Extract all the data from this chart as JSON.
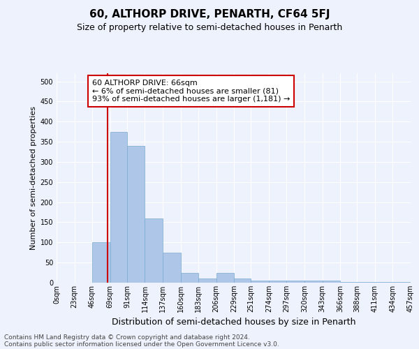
{
  "title": "60, ALTHORP DRIVE, PENARTH, CF64 5FJ",
  "subtitle": "Size of property relative to semi-detached houses in Penarth",
  "xlabel": "Distribution of semi-detached houses by size in Penarth",
  "ylabel": "Number of semi-detached properties",
  "property_size": 66,
  "annotation_line1": "60 ALTHORP DRIVE: 66sqm",
  "annotation_line2": "← 6% of semi-detached houses are smaller (81)",
  "annotation_line3": "93% of semi-detached houses are larger (1,181) →",
  "footer_line1": "Contains HM Land Registry data © Crown copyright and database right 2024.",
  "footer_line2": "Contains public sector information licensed under the Open Government Licence v3.0.",
  "bar_color": "#aec6e8",
  "bar_edge_color": "#7aaad0",
  "annotation_box_color": "#ffffff",
  "annotation_box_edge_color": "#cc0000",
  "vline_color": "#cc0000",
  "bin_labels": [
    "0sqm",
    "23sqm",
    "46sqm",
    "69sqm",
    "91sqm",
    "114sqm",
    "137sqm",
    "160sqm",
    "183sqm",
    "206sqm",
    "229sqm",
    "251sqm",
    "274sqm",
    "297sqm",
    "320sqm",
    "343sqm",
    "366sqm",
    "388sqm",
    "411sqm",
    "434sqm",
    "457sqm"
  ],
  "bin_edges": [
    0,
    23,
    46,
    69,
    91,
    114,
    137,
    160,
    183,
    206,
    229,
    251,
    274,
    297,
    320,
    343,
    366,
    388,
    411,
    434,
    457
  ],
  "counts": [
    0,
    0,
    100,
    375,
    340,
    160,
    75,
    25,
    10,
    25,
    10,
    5,
    5,
    5,
    5,
    5,
    2,
    2,
    2,
    2
  ],
  "ylim": [
    0,
    520
  ],
  "yticks": [
    0,
    50,
    100,
    150,
    200,
    250,
    300,
    350,
    400,
    450,
    500
  ],
  "background_color": "#eef2fc",
  "plot_bg_color": "#eef2fc",
  "title_fontsize": 11,
  "subtitle_fontsize": 9,
  "ylabel_fontsize": 8,
  "xlabel_fontsize": 9,
  "tick_fontsize": 7,
  "footer_fontsize": 6.5,
  "annotation_fontsize": 8
}
